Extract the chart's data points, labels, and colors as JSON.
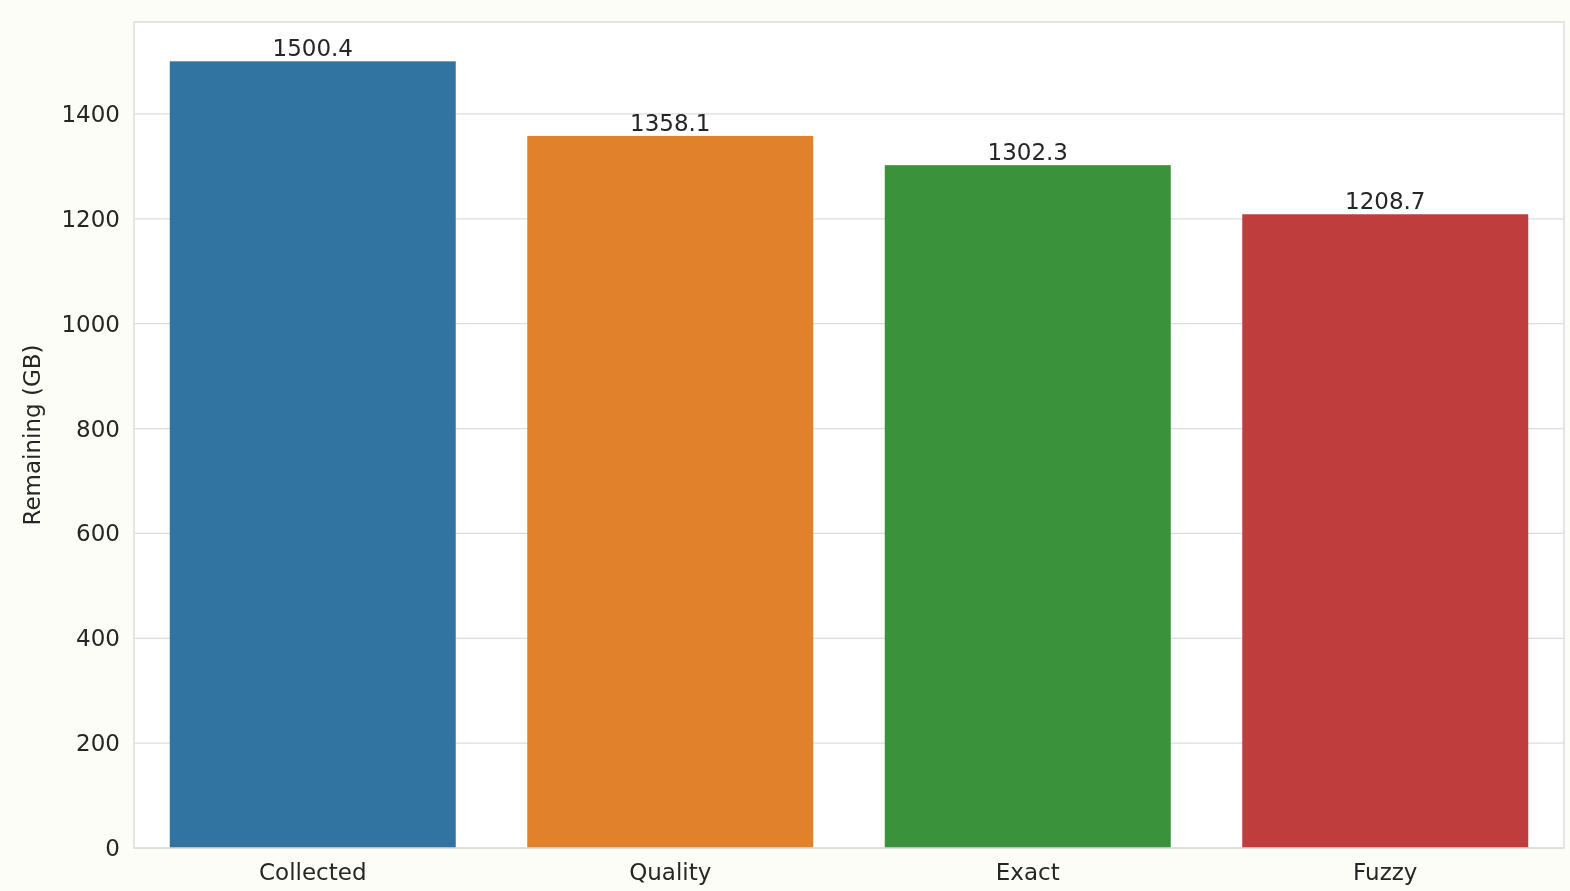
{
  "chart_data": {
    "type": "bar",
    "ylabel": "Remaining (GB)",
    "categories": [
      "Collected",
      "Quality",
      "Exact",
      "Fuzzy"
    ],
    "values": [
      1500.4,
      1358.1,
      1302.3,
      1208.7
    ],
    "colors": [
      "#3274a1",
      "#e1812c",
      "#3a923a",
      "#c03d3e"
    ],
    "ylim": [
      0,
      1575.4
    ],
    "yticks": [
      0,
      200,
      400,
      600,
      800,
      1000,
      1200,
      1400
    ],
    "grid": "y",
    "data_labels": true
  }
}
